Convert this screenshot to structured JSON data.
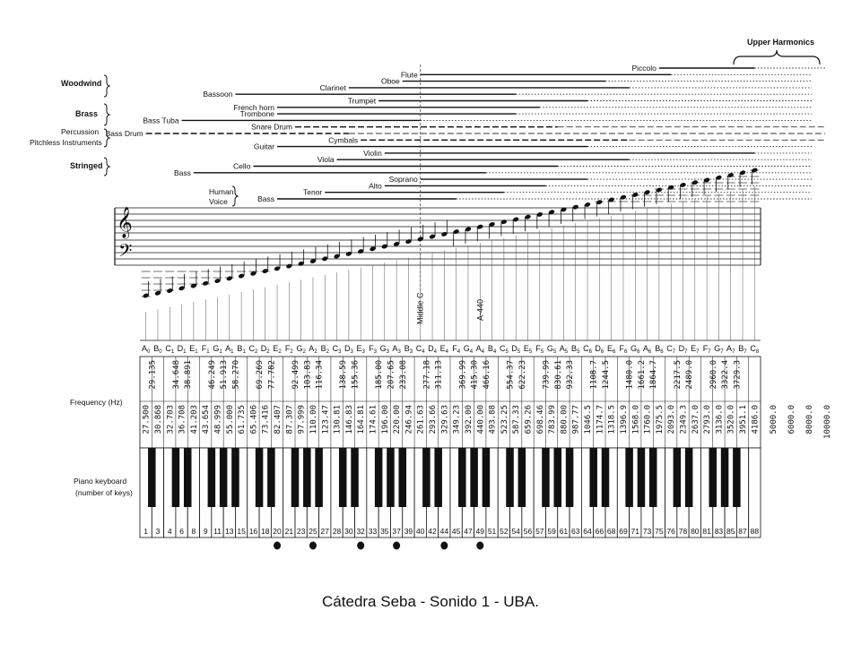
{
  "header": {
    "upper_harmonics": "Upper Harmonics"
  },
  "groups": [
    "Woodwind",
    "Brass",
    "Percussion",
    "Pitchless Instruments",
    "Stringed"
  ],
  "instruments": [
    {
      "name": "Piccolo",
      "low": 75,
      "high": 88,
      "ext": 920,
      "row": 0
    },
    {
      "name": "Flute",
      "low": 40,
      "high": 76,
      "ext": 905,
      "row": 1
    },
    {
      "name": "Oboe",
      "low": 38,
      "high": 67,
      "ext": 905,
      "row": 2
    },
    {
      "name": "Clarinet",
      "low": 30,
      "high": 70,
      "ext": 905,
      "row": 3
    },
    {
      "name": "Bassoon",
      "low": 14,
      "high": 54,
      "ext": 905,
      "row": 4
    },
    {
      "name": "Trumpet",
      "low": 34,
      "high": 64,
      "ext": 905,
      "row": 5
    },
    {
      "name": "French horn",
      "low": 20,
      "high": 57,
      "ext": 905,
      "row": 6
    },
    {
      "name": "Trombone",
      "low": 20,
      "high": 54,
      "ext": 905,
      "row": 7
    },
    {
      "name": "Bass Tuba",
      "low": 6,
      "high": 40,
      "ext": 905,
      "row": 8
    },
    {
      "name": "Snare Drum",
      "low": 22,
      "high": 60,
      "ext": 920,
      "row": 9,
      "dashed": true
    },
    {
      "name": "Bass Drum",
      "low": 1,
      "high": 30,
      "ext": 920,
      "row": 10,
      "dashed": true
    },
    {
      "name": "Cymbals",
      "low": 32,
      "high": 70,
      "ext": 920,
      "row": 11,
      "dashed": true
    },
    {
      "name": "Guitar",
      "low": 20,
      "high": 64,
      "ext": 905,
      "row": 12
    },
    {
      "name": "Violin",
      "low": 35,
      "high": 88,
      "ext": 905,
      "row": 13
    },
    {
      "name": "Viola",
      "low": 28,
      "high": 70,
      "ext": 905,
      "row": 14
    },
    {
      "name": "Cello",
      "low": 16,
      "high": 60,
      "ext": 905,
      "row": 15
    },
    {
      "name": "Bass",
      "low": 8,
      "high": 50,
      "ext": 905,
      "row": 16
    },
    {
      "name": "Soprano",
      "low": 40,
      "high": 64,
      "ext": 905,
      "row": 17
    },
    {
      "name": "Alto",
      "low": 35,
      "high": 58,
      "ext": 905,
      "row": 18
    },
    {
      "name": "Tenor",
      "low": 27,
      "high": 52,
      "ext": 905,
      "row": 19
    },
    {
      "name": "Bass",
      "low": 20,
      "high": 45,
      "ext": 905,
      "row": 20
    }
  ],
  "voice_labels": {
    "human": "Human",
    "voice": "Voice"
  },
  "markers": {
    "middle_c": "Middle C",
    "a440": "A-440"
  },
  "notes": [
    "A0",
    "B0",
    "C1",
    "D1",
    "E1",
    "F1",
    "G1",
    "A1",
    "B1",
    "C2",
    "D2",
    "E2",
    "F2",
    "G2",
    "A2",
    "B2",
    "C3",
    "D3",
    "E3",
    "F3",
    "G3",
    "A3",
    "B3",
    "C4",
    "D4",
    "E4",
    "F4",
    "G4",
    "A4",
    "B4",
    "C5",
    "D5",
    "E5",
    "F5",
    "G5",
    "A5",
    "B5",
    "C6",
    "D6",
    "E6",
    "F6",
    "G6",
    "A6",
    "B6",
    "C7",
    "D7",
    "E7",
    "F7",
    "G7",
    "A7",
    "B7",
    "C8"
  ],
  "frequency_label": "Frequency (Hz)",
  "sharp_freqs": [
    "29.135",
    "34.648",
    "38.891",
    "46.249",
    "51.913",
    "58.270",
    "69.269",
    "77.782",
    "92.499",
    "103.83",
    "116.34",
    "138.59",
    "155.36",
    "185.00",
    "207.65",
    "233.08",
    "277.18",
    "311.13",
    "369.99",
    "415.30",
    "466.16",
    "554.37",
    "622.23",
    "739.99",
    "830.61",
    "932.33",
    "1108.7",
    "1244.5",
    "1480.0",
    "1661.2",
    "1864.7",
    "2217.5",
    "2489.0",
    "2960.0",
    "3322.4",
    "3729.3"
  ],
  "natural_freqs": [
    "27.500",
    "30.868",
    "32.703",
    "36.708",
    "41.203",
    "43.654",
    "48.999",
    "55.000",
    "61.735",
    "65.406",
    "73.416",
    "82.407",
    "87.307",
    "97.999",
    "110.00",
    "123.47",
    "130.81",
    "146.83",
    "164.81",
    "174.61",
    "196.00",
    "220.00",
    "246.94",
    "261.63",
    "293.66",
    "329.63",
    "349.23",
    "392.00",
    "440.00",
    "493.88",
    "523.25",
    "587.33",
    "659.26",
    "698.46",
    "783.99",
    "880.00",
    "987.77",
    "1046.5",
    "1174.7",
    "1318.5",
    "1396.9",
    "1568.0",
    "1760.0",
    "1975.5",
    "2093.0",
    "2349.3",
    "2637.0",
    "2793.0",
    "3136.0",
    "3520.0",
    "3951.1",
    "4186.0"
  ],
  "harmonic_freqs": [
    "5000.0",
    "6000.0",
    "8000.0",
    "10000.0"
  ],
  "piano": {
    "label_line1": "Piano keyboard",
    "label_line2": "(number of keys)"
  },
  "key_numbers": [
    "1",
    "3",
    "4",
    "6",
    "8",
    "9",
    "11",
    "13",
    "15",
    "16",
    "18",
    "20",
    "21",
    "23",
    "25",
    "27",
    "28",
    "30",
    "32",
    "33",
    "35",
    "37",
    "39",
    "40",
    "42",
    "44",
    "45",
    "47",
    "49",
    "51",
    "52",
    "54",
    "56",
    "57",
    "59",
    "61",
    "63",
    "64",
    "66",
    "68",
    "69",
    "71",
    "73",
    "75",
    "76",
    "78",
    "80",
    "81",
    "83",
    "85",
    "87",
    "88"
  ],
  "caption": "Cátedra Seba - Sonido 1 - UBA."
}
